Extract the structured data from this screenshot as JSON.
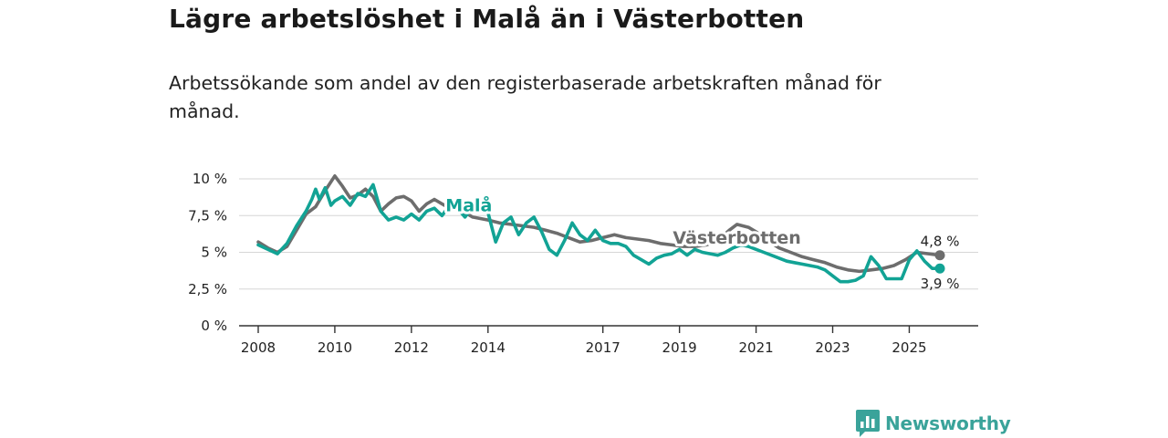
{
  "chart_data": {
    "type": "line",
    "title": "Lägre arbetslöshet i Malå än i Västerbotten",
    "subtitle": "Arbetssökande som andel av den registerbaserade arbetskraften månad för månad.",
    "ylim": [
      0,
      10
    ],
    "yticks": [
      0,
      2.5,
      5,
      7.5,
      10
    ],
    "ytick_labels": [
      "0 %",
      "2,5 %",
      "5 %",
      "7,5 %",
      "10 %"
    ],
    "xlim": [
      2007.5,
      2026.8
    ],
    "xticks": [
      2008,
      2010,
      2012,
      2014,
      2017,
      2019,
      2021,
      2023,
      2025
    ],
    "xtick_labels": [
      "2008",
      "2010",
      "2012",
      "2014",
      "2017",
      "2019",
      "2021",
      "2023",
      "2025"
    ],
    "series": [
      {
        "name": "Västerbotten",
        "label": "Västerbotten",
        "color": "#6d6d6d",
        "end_label": "4,8 %",
        "x": [
          2008.0,
          2008.25,
          2008.5,
          2008.75,
          2009.0,
          2009.25,
          2009.5,
          2009.75,
          2010.0,
          2010.2,
          2010.4,
          2010.6,
          2010.8,
          2011.0,
          2011.2,
          2011.4,
          2011.6,
          2011.8,
          2012.0,
          2012.2,
          2012.4,
          2012.6,
          2012.8,
          2013.0,
          2013.2,
          2013.4,
          2013.6,
          2013.8,
          2014.0,
          2014.3,
          2014.6,
          2014.9,
          2015.2,
          2015.5,
          2015.8,
          2016.1,
          2016.4,
          2016.7,
          2017.0,
          2017.3,
          2017.6,
          2017.9,
          2018.2,
          2018.5,
          2018.8,
          2019.1,
          2019.4,
          2019.7,
          2020.0,
          2020.3,
          2020.5,
          2020.8,
          2021.0,
          2021.3,
          2021.6,
          2021.9,
          2022.2,
          2022.5,
          2022.8,
          2023.1,
          2023.4,
          2023.7,
          2024.0,
          2024.3,
          2024.6,
          2024.9,
          2025.2,
          2025.5,
          2025.8
        ],
        "y": [
          5.7,
          5.3,
          5.0,
          5.4,
          6.5,
          7.6,
          8.1,
          9.2,
          10.2,
          9.5,
          8.7,
          8.9,
          9.3,
          8.8,
          7.8,
          8.3,
          8.7,
          8.8,
          8.5,
          7.8,
          8.3,
          8.6,
          8.3,
          8.0,
          7.9,
          7.7,
          7.4,
          7.3,
          7.2,
          7.0,
          6.9,
          6.8,
          6.7,
          6.5,
          6.3,
          6.0,
          5.7,
          5.8,
          6.0,
          6.2,
          6.0,
          5.9,
          5.8,
          5.6,
          5.5,
          5.4,
          5.4,
          5.5,
          5.8,
          6.5,
          6.9,
          6.7,
          6.4,
          5.8,
          5.3,
          5.0,
          4.7,
          4.5,
          4.3,
          4.0,
          3.8,
          3.7,
          3.8,
          3.9,
          4.1,
          4.5,
          5.0,
          4.9,
          4.8
        ]
      },
      {
        "name": "Malå",
        "label": "Malå",
        "color": "#12a395",
        "end_label": "3,9 %",
        "x": [
          2008.0,
          2008.25,
          2008.5,
          2008.75,
          2009.0,
          2009.25,
          2009.4,
          2009.5,
          2009.6,
          2009.75,
          2009.9,
          2010.0,
          2010.2,
          2010.4,
          2010.6,
          2010.8,
          2011.0,
          2011.2,
          2011.4,
          2011.6,
          2011.8,
          2012.0,
          2012.2,
          2012.4,
          2012.6,
          2012.8,
          2013.0,
          2013.2,
          2013.4,
          2013.6,
          2013.8,
          2014.0,
          2014.2,
          2014.4,
          2014.6,
          2014.8,
          2015.0,
          2015.2,
          2015.4,
          2015.6,
          2015.8,
          2016.0,
          2016.2,
          2016.4,
          2016.6,
          2016.8,
          2017.0,
          2017.2,
          2017.4,
          2017.6,
          2017.8,
          2018.0,
          2018.2,
          2018.4,
          2018.6,
          2018.8,
          2019.0,
          2019.2,
          2019.4,
          2019.6,
          2019.8,
          2020.0,
          2020.2,
          2020.4,
          2020.6,
          2020.8,
          2021.0,
          2021.2,
          2021.4,
          2021.6,
          2021.8,
          2022.0,
          2022.2,
          2022.4,
          2022.6,
          2022.8,
          2023.0,
          2023.2,
          2023.4,
          2023.6,
          2023.8,
          2024.0,
          2024.2,
          2024.4,
          2024.6,
          2024.8,
          2025.0,
          2025.2,
          2025.4,
          2025.6,
          2025.8
        ],
        "y": [
          5.5,
          5.2,
          4.9,
          5.6,
          6.8,
          7.8,
          8.6,
          9.3,
          8.6,
          9.4,
          8.2,
          8.5,
          8.8,
          8.2,
          9.0,
          8.8,
          9.6,
          7.8,
          7.2,
          7.4,
          7.2,
          7.6,
          7.2,
          7.8,
          8.0,
          7.5,
          8.2,
          8.0,
          7.4,
          8.1,
          7.8,
          7.7,
          5.7,
          7.0,
          7.4,
          6.2,
          7.0,
          7.4,
          6.4,
          5.2,
          4.8,
          5.8,
          7.0,
          6.2,
          5.8,
          6.5,
          5.8,
          5.6,
          5.6,
          5.4,
          4.8,
          4.5,
          4.2,
          4.6,
          4.8,
          4.9,
          5.2,
          4.8,
          5.2,
          5.0,
          4.9,
          4.8,
          5.0,
          5.3,
          5.5,
          5.4,
          5.2,
          5.0,
          4.8,
          4.6,
          4.4,
          4.3,
          4.2,
          4.1,
          4.0,
          3.8,
          3.4,
          3.0,
          3.0,
          3.1,
          3.4,
          4.7,
          4.1,
          3.2,
          3.2,
          3.2,
          4.5,
          5.1,
          4.4,
          3.9,
          3.9
        ]
      }
    ]
  },
  "branding": {
    "name": "Newsworthy",
    "color": "#3aa39a"
  }
}
